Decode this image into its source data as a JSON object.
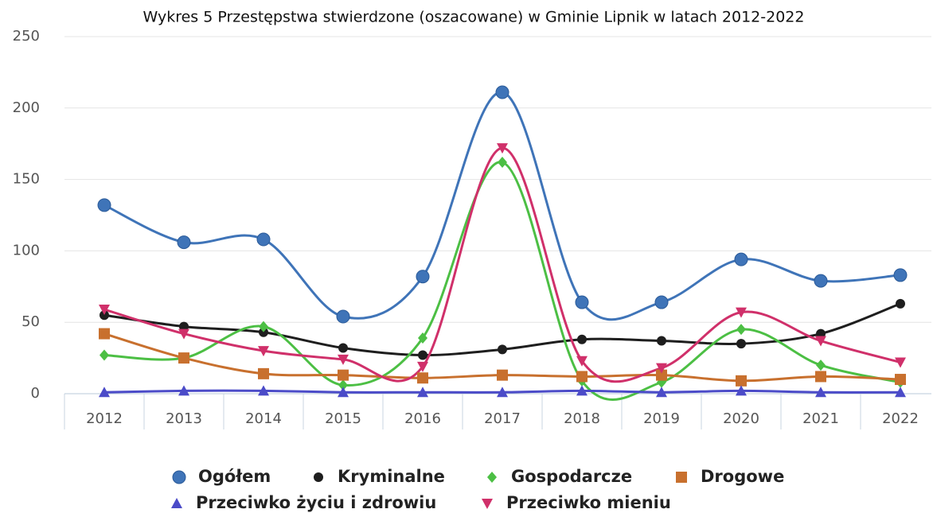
{
  "chart_data": {
    "type": "line",
    "title": "Wykres 5 Przestępstwa stwierdzone (oszacowane) w Gminie Lipnik w latach 2012-2022",
    "categories": [
      "2012",
      "2013",
      "2014",
      "2015",
      "2016",
      "2017",
      "2018",
      "2019",
      "2020",
      "2021",
      "2022"
    ],
    "ylim": [
      0,
      250
    ],
    "yticks": [
      0,
      50,
      100,
      150,
      200,
      250
    ],
    "grid": true,
    "legend": "bottom",
    "series": [
      {
        "name": "Ogółem",
        "color": "#3f74b8",
        "marker": "circle",
        "values": [
          132,
          106,
          108,
          54,
          82,
          211,
          64,
          64,
          94,
          79,
          83
        ]
      },
      {
        "name": "Kryminalne",
        "color": "#1e1e1e",
        "marker": "dot",
        "values": [
          55,
          47,
          43,
          32,
          27,
          31,
          38,
          37,
          35,
          42,
          63
        ]
      },
      {
        "name": "Gospodarcze",
        "color": "#4cbf44",
        "marker": "diamond",
        "values": [
          27,
          25,
          47,
          6,
          39,
          162,
          9,
          8,
          45,
          20,
          8
        ]
      },
      {
        "name": "Drogowe",
        "color": "#c8702e",
        "marker": "square",
        "values": [
          42,
          25,
          14,
          13,
          11,
          13,
          12,
          13,
          9,
          12,
          10
        ]
      },
      {
        "name": "Przeciwko życiu i zdrowiu",
        "color": "#4b4bc8",
        "marker": "triangle-up",
        "values": [
          1,
          2,
          2,
          1,
          1,
          1,
          2,
          1,
          2,
          1,
          1
        ]
      },
      {
        "name": "Przeciwko mieniu",
        "color": "#d0306a",
        "marker": "triangle-down",
        "values": [
          59,
          42,
          30,
          24,
          19,
          172,
          23,
          18,
          57,
          37,
          22
        ]
      }
    ]
  }
}
